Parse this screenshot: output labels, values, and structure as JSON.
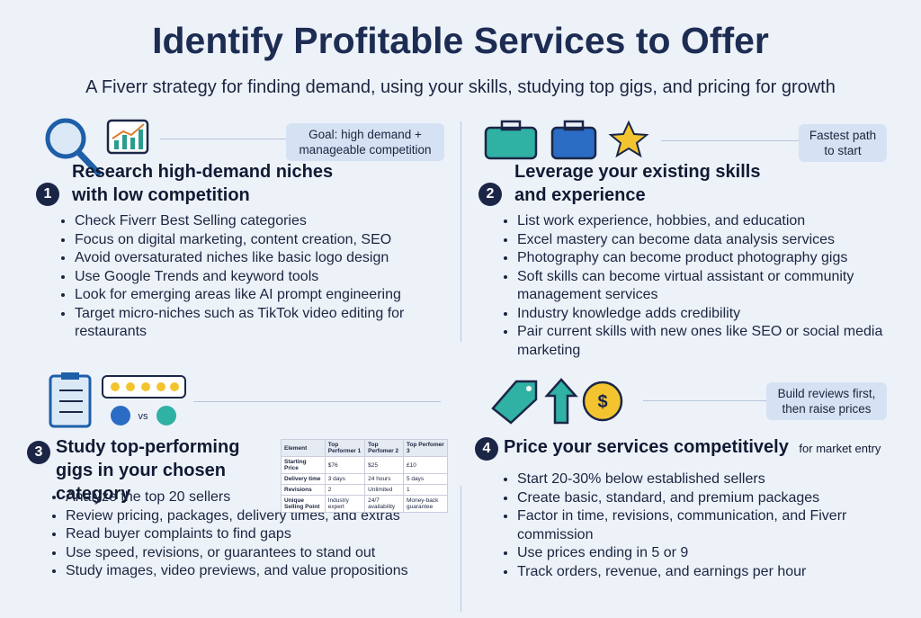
{
  "header": {
    "title": "Identify Profitable Services to Offer",
    "subtitle": "A Fiverr strategy for finding demand, using your skills, studying top gigs, and pricing for growth"
  },
  "sections": [
    {
      "number": "1",
      "title": "Research high-demand niches with low competition",
      "note": "Goal: high demand + manageable competition",
      "bullets": [
        "Check Fiverr Best Selling categories",
        "Focus on digital marketing, content creation, SEO",
        "Avoid oversaturated niches like basic logo design",
        "Use Google Trends and keyword tools",
        "Look for emerging areas like AI prompt engineering",
        "Target micro-niches such as TikTok video editing for restaurants"
      ]
    },
    {
      "number": "2",
      "title": "Leverage your existing skills and experience",
      "note": "Fastest path to start",
      "bullets": [
        "List work experience, hobbies, and education",
        "Excel mastery can become data analysis services",
        "Photography can become product photography gigs",
        "Soft skills can become virtual assistant or community management services",
        "Industry knowledge adds credibility",
        "Pair current skills with new ones like SEO or social media marketing"
      ]
    },
    {
      "number": "3",
      "title": "Study top-performing gigs in your chosen category",
      "bullets": [
        "Analyze the top 20 sellers",
        "Review pricing, packages, delivery times, and extras",
        "Read buyer complaints to find gaps",
        "Use speed, revisions, or guarantees to stand out",
        "Study images, video previews, and value propositions"
      ],
      "table": {
        "header": [
          "Element",
          "Top Performer 1",
          "Top Perfomer 2",
          "Top Perfomer 3"
        ],
        "rows": [
          [
            "Starting Price",
            "$76",
            "$25",
            "£10"
          ],
          [
            "Delivery time",
            "3 days",
            "24 hours",
            "5 days"
          ],
          [
            "Revisions",
            "2",
            "Unlimited",
            "1"
          ],
          [
            "Unique Selling Point",
            "Industry expert",
            "24/7 availability",
            "Money-back guarantee"
          ]
        ]
      }
    },
    {
      "number": "4",
      "title": "Price your services competitively",
      "title_suffix": "for market entry",
      "note": "Build reviews first, then raise prices",
      "bullets": [
        "Start 20-30% below established sellers",
        "Create basic, standard, and premium packages",
        "Factor in time, revisions, communication, and Fiverr commission",
        "Use prices ending in 5 or 9",
        "Track orders, revenue, and earnings per hour"
      ]
    }
  ]
}
